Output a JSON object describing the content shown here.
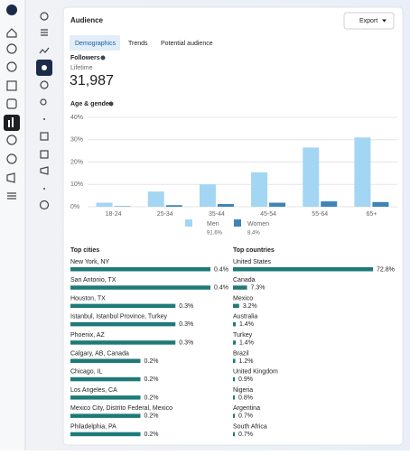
{
  "header": {
    "title": "Audience",
    "export": "Export"
  },
  "tabs": [
    "Demographics",
    "Trends",
    "Potential audience"
  ],
  "followers": {
    "title": "Followers",
    "period": "Lifetime",
    "count": "31,987"
  },
  "chart_data": [
    {
      "type": "bar",
      "title": "Age & gender",
      "categories": [
        "18-24",
        "25-34",
        "35-44",
        "45-54",
        "55-64",
        "65+"
      ],
      "series": [
        {
          "name": "Men",
          "color": "#a3d6f2",
          "values": [
            1.8,
            6.8,
            10,
            15.4,
            26.5,
            31.0
          ],
          "total_label": "91.6%"
        },
        {
          "name": "Women",
          "color": "#3f84b6",
          "values": [
            0.2,
            0.7,
            1.2,
            1.8,
            2.4,
            2.1
          ],
          "total_label": "8.4%"
        }
      ],
      "ylim": [
        0,
        40
      ],
      "yticks": [
        {
          "value": 0,
          "label": "0%"
        },
        {
          "value": 10,
          "label": "10%"
        },
        {
          "value": 20,
          "label": "20%"
        },
        {
          "value": 30,
          "label": "30%"
        },
        {
          "value": 40,
          "label": "40%"
        }
      ],
      "grid": true
    },
    {
      "type": "hbar",
      "title": "Top cities",
      "color": "#1d7a78",
      "categories": [
        "New York, NY",
        "San Antonio, TX",
        "Houston, TX",
        "Istanbul, Istanbul Province, Turkey",
        "Phoenix, AZ",
        "Calgary, AB, Canada",
        "Chicago, IL",
        "Los Angeles, CA",
        "Mexico City, Distrito Federal, Mexico",
        "Philadelphia, PA"
      ],
      "values": [
        0.4,
        0.4,
        0.3,
        0.3,
        0.3,
        0.2,
        0.2,
        0.2,
        0.2,
        0.2
      ],
      "value_labels": [
        "0.4%",
        "0.4%",
        "0.3%",
        "0.3%",
        "0.3%",
        "0.2%",
        "0.2%",
        "0.2%",
        "0.2%",
        "0.2%"
      ]
    },
    {
      "type": "hbar",
      "title": "Top countries",
      "color": "#1d7a78",
      "categories": [
        "United States",
        "Canada",
        "Mexico",
        "Australia",
        "Turkey",
        "Brazil",
        "United Kingdom",
        "Nigeria",
        "Argentina",
        "South Africa"
      ],
      "values": [
        72.8,
        7.3,
        3.2,
        1.4,
        1.4,
        1.2,
        0.9,
        0.8,
        0.7,
        0.7
      ],
      "value_labels": [
        "72.8%",
        "7.3%",
        "3.2%",
        "1.4%",
        "1.4%",
        "1.2%",
        "0.9%",
        "0.8%",
        "0.7%",
        "0.7%"
      ]
    }
  ]
}
